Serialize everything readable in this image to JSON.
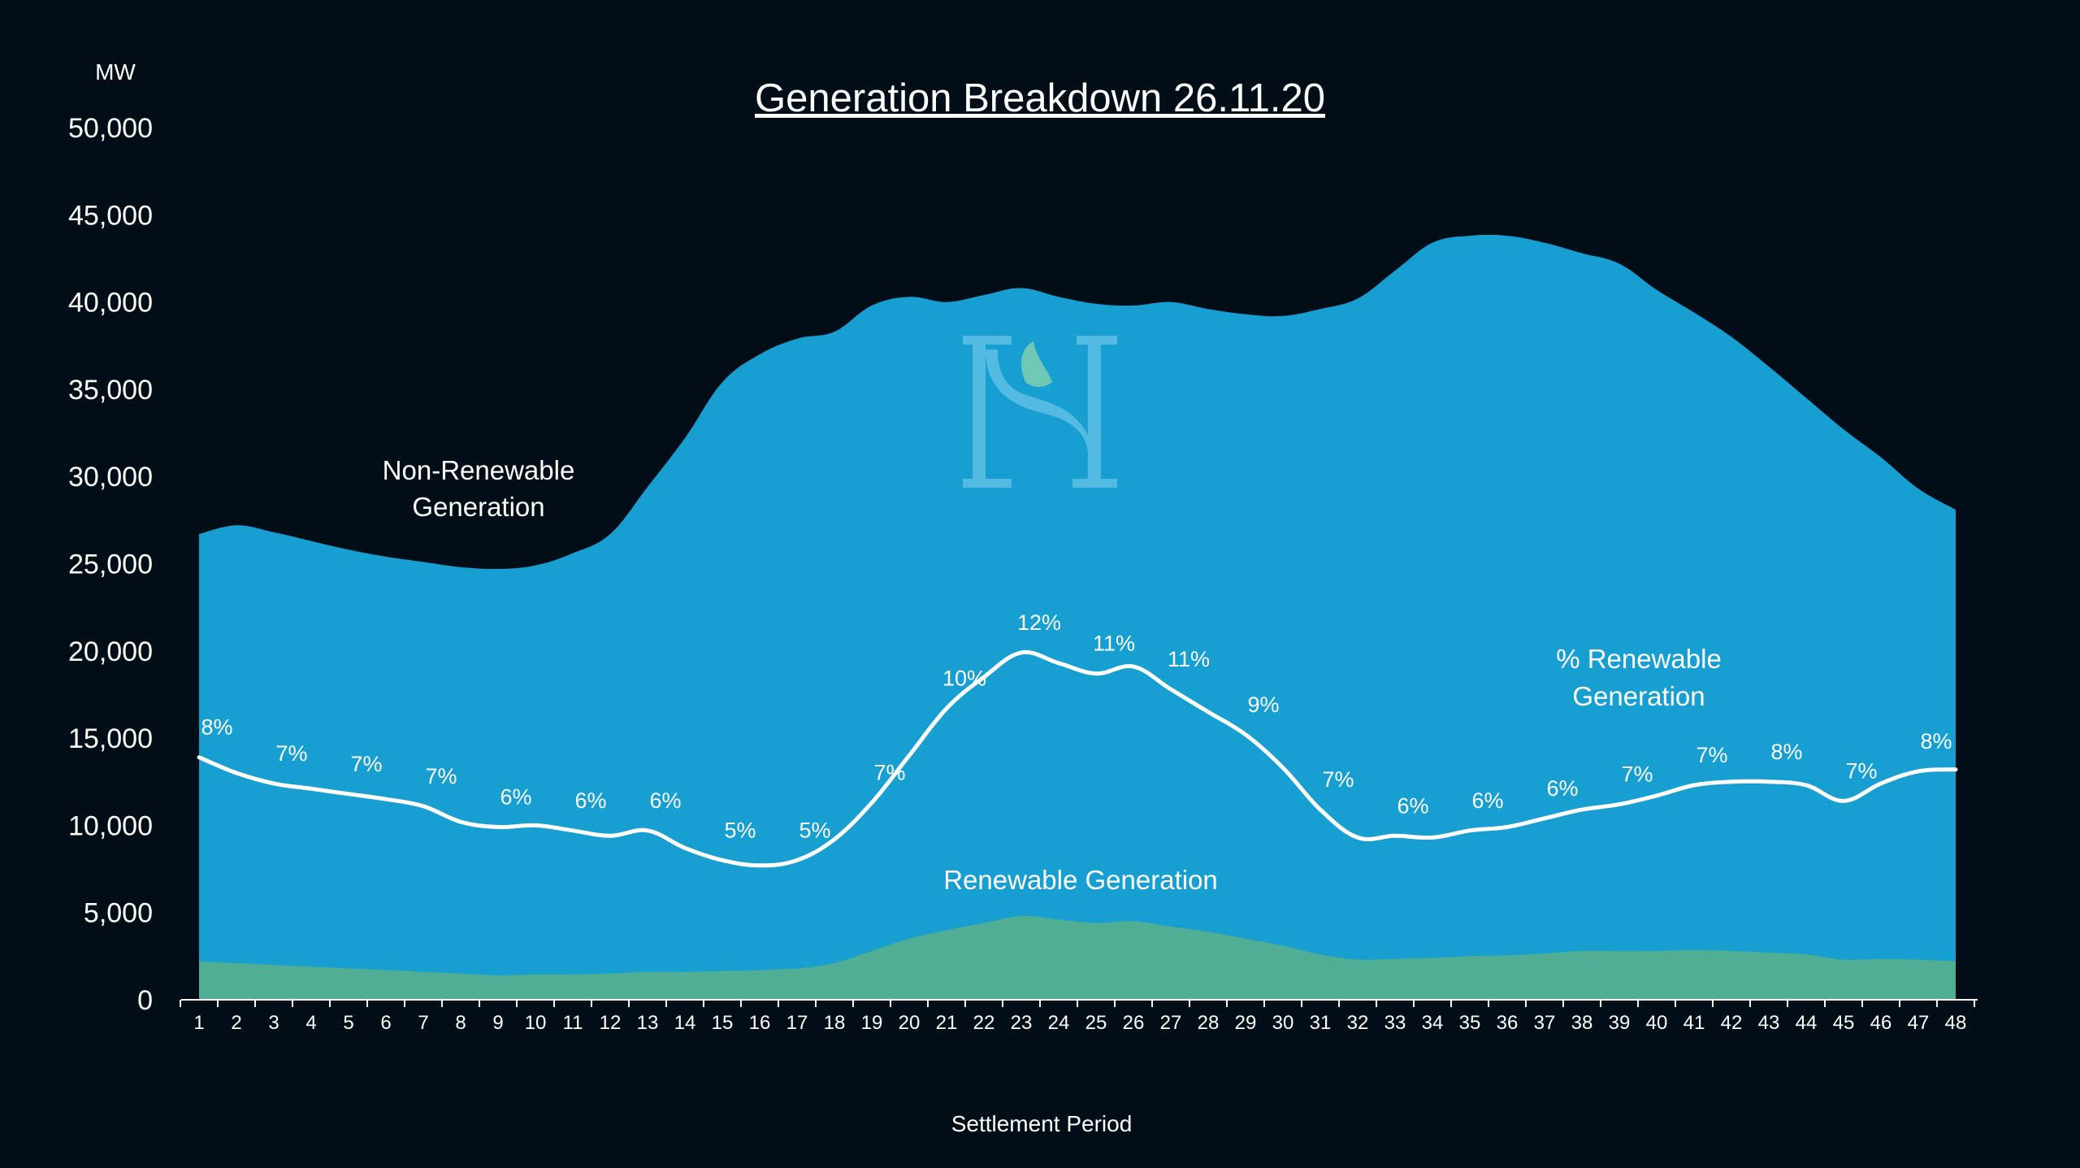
{
  "chart_data": {
    "type": "area",
    "title": "Generation Breakdown 26.11.20",
    "ylabel": "MW",
    "xlabel": "Settlement Period",
    "ylim": [
      0,
      50000
    ],
    "yticks": [
      0,
      5000,
      10000,
      15000,
      20000,
      25000,
      30000,
      35000,
      40000,
      45000,
      50000
    ],
    "ytick_labels": [
      "0",
      "5,000",
      "10,000",
      "15,000",
      "20,000",
      "25,000",
      "30,000",
      "35,000",
      "40,000",
      "45,000",
      "50,000"
    ],
    "categories": [
      "1",
      "2",
      "3",
      "4",
      "5",
      "6",
      "7",
      "8",
      "9",
      "10",
      "11",
      "12",
      "13",
      "14",
      "15",
      "16",
      "17",
      "18",
      "19",
      "20",
      "21",
      "22",
      "23",
      "24",
      "25",
      "26",
      "27",
      "28",
      "29",
      "30",
      "31",
      "32",
      "33",
      "34",
      "35",
      "36",
      "37",
      "38",
      "39",
      "40",
      "41",
      "42",
      "43",
      "44",
      "45",
      "46",
      "47",
      "48"
    ],
    "grid": false,
    "colors": {
      "background": "#010e18",
      "non_renewable": "#179fd1",
      "renewable": "#4fae93",
      "percent_line": "#ffffff",
      "text": "#ffffff",
      "logo": "#5ec0e4"
    },
    "series": [
      {
        "kind": "area",
        "values": [
          26700,
          27200,
          26800,
          26300,
          25800,
          25400,
          25100,
          24800,
          24700,
          24900,
          25600,
          26700,
          29400,
          32200,
          35400,
          37000,
          37900,
          38300,
          39800,
          40300,
          40000,
          40400,
          40800,
          40300,
          39900,
          39800,
          40000,
          39600,
          39300,
          39200,
          39600,
          40200,
          41800,
          43400,
          43800,
          43800,
          43400,
          42800,
          42200,
          40700,
          39400,
          38000,
          36300,
          34500,
          32700,
          31100,
          29300,
          28100
        ]
      },
      {
        "kind": "area",
        "values": [
          2200,
          2100,
          2000,
          1900,
          1800,
          1700,
          1600,
          1500,
          1400,
          1450,
          1450,
          1500,
          1600,
          1600,
          1650,
          1700,
          1800,
          2100,
          2800,
          3500,
          4000,
          4400,
          4800,
          4600,
          4400,
          4500,
          4200,
          3900,
          3500,
          3100,
          2600,
          2300,
          2350,
          2400,
          2500,
          2550,
          2650,
          2800,
          2800,
          2800,
          2850,
          2800,
          2700,
          2600,
          2300,
          2350,
          2300,
          2200
        ]
      },
      {
        "kind": "line",
        "values": [
          13900,
          13000,
          12400,
          12100,
          11800,
          11500,
          11100,
          10200,
          9900,
          10000,
          9700,
          9400,
          9700,
          8700,
          8000,
          7700,
          8000,
          9200,
          11300,
          14000,
          16700,
          18500,
          19900,
          19300,
          18700,
          19100,
          17800,
          16500,
          15200,
          13300,
          10900,
          9300,
          9400,
          9300,
          9700,
          9900,
          10400,
          10900,
          11200,
          11700,
          12300,
          12500,
          12500,
          12300,
          11400,
          12400,
          13100,
          13200
        ]
      }
    ],
    "data_labels": [
      {
        "category": "1",
        "text": "8%"
      },
      {
        "category": "3",
        "text": "7%"
      },
      {
        "category": "5",
        "text": "7%"
      },
      {
        "category": "7",
        "text": "7%"
      },
      {
        "category": "9",
        "text": "6%"
      },
      {
        "category": "11",
        "text": "6%"
      },
      {
        "category": "13",
        "text": "6%"
      },
      {
        "category": "15",
        "text": "5%"
      },
      {
        "category": "17",
        "text": "5%"
      },
      {
        "category": "19",
        "text": "7%"
      },
      {
        "category": "21",
        "text": "10%"
      },
      {
        "category": "23",
        "text": "12%"
      },
      {
        "category": "25",
        "text": "11%"
      },
      {
        "category": "27",
        "text": "11%"
      },
      {
        "category": "29",
        "text": "9%"
      },
      {
        "category": "31",
        "text": "7%"
      },
      {
        "category": "33",
        "text": "6%"
      },
      {
        "category": "35",
        "text": "6%"
      },
      {
        "category": "37",
        "text": "6%"
      },
      {
        "category": "39",
        "text": "7%"
      },
      {
        "category": "41",
        "text": "7%"
      },
      {
        "category": "43",
        "text": "8%"
      },
      {
        "category": "45",
        "text": "7%"
      },
      {
        "category": "47",
        "text": "8%"
      }
    ],
    "annotations": {
      "non_renewable": [
        "Non-Renewable",
        "Generation"
      ],
      "renewable": "Renewable Generation",
      "percent_renewable": [
        "% Renewable",
        "Generation"
      ]
    },
    "logo": {
      "icon": "hs-logo-icon"
    }
  }
}
